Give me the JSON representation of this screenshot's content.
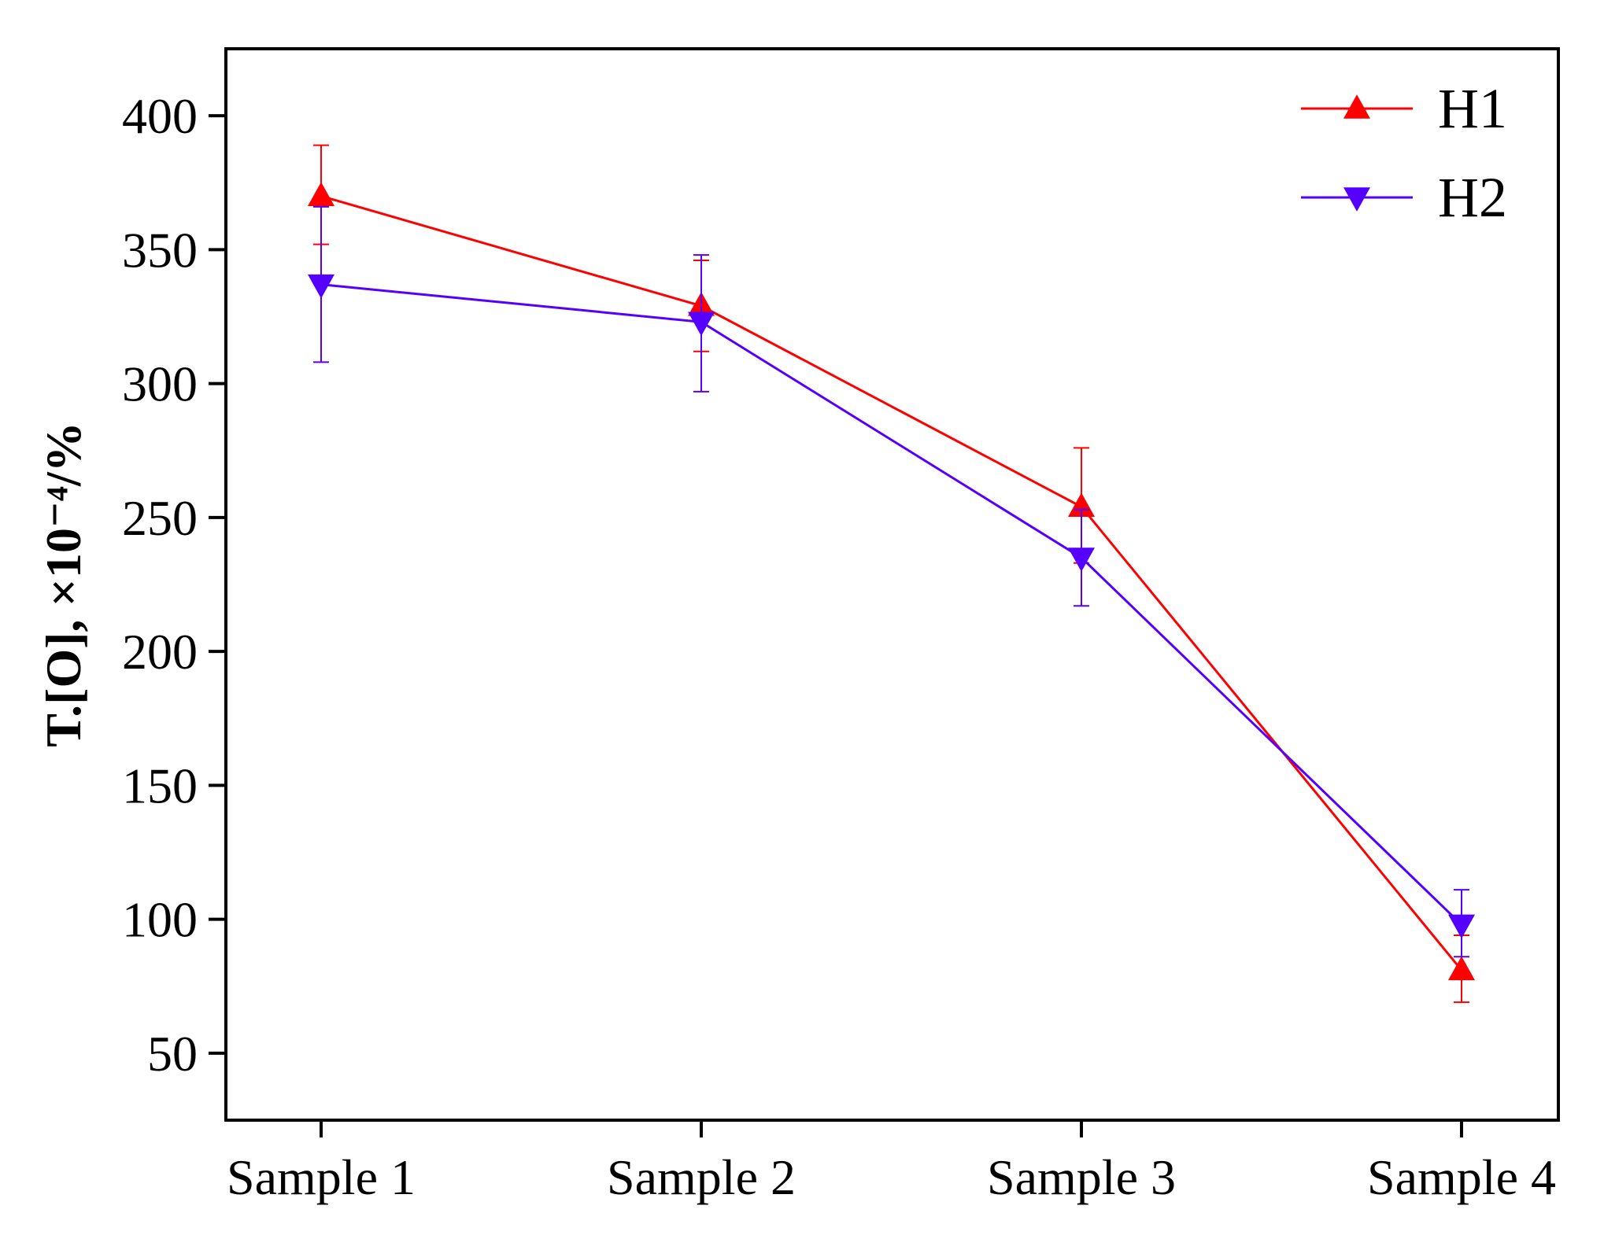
{
  "chart_data": {
    "type": "line",
    "title": "",
    "xlabel": "",
    "ylabel": "T.[O], ×10⁻⁴/%",
    "categories": [
      "Sample 1",
      "Sample 2",
      "Sample 3",
      "Sample 4"
    ],
    "ylim": [
      25,
      425
    ],
    "yticks": [
      50,
      100,
      150,
      200,
      250,
      300,
      350,
      400
    ],
    "ytick_labels": [
      "50",
      "100",
      "150",
      "200",
      "250",
      "300",
      "350",
      "400"
    ],
    "legend_position": "top-right",
    "grid": false,
    "series": [
      {
        "name": "H1",
        "color": "#ff0000",
        "marker": "triangle-up",
        "values": [
          370,
          329,
          254,
          81
        ],
        "error_low": [
          352,
          312,
          233,
          69
        ],
        "error_high": [
          389,
          346,
          276,
          94
        ]
      },
      {
        "name": "H2",
        "color": "#5500ff",
        "marker": "triangle-down",
        "values": [
          337,
          323,
          235,
          98
        ],
        "error_low": [
          308,
          297,
          217,
          86
        ],
        "error_high": [
          366,
          348,
          253,
          111
        ]
      }
    ]
  }
}
